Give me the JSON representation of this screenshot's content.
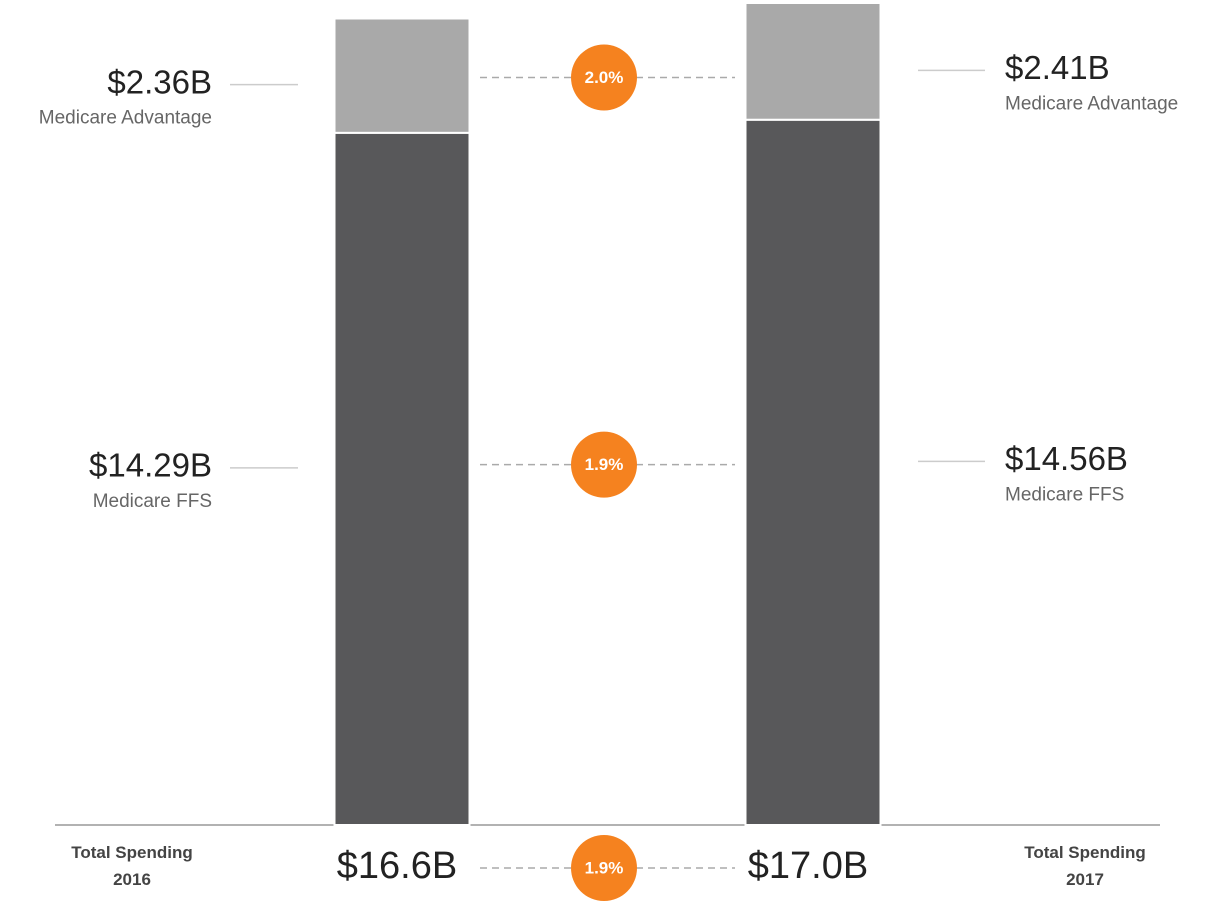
{
  "chart_data": {
    "type": "stacked-bar",
    "categories": [
      "Total Spending\n2016",
      "Total Spending\n2017"
    ],
    "series": [
      {
        "name": "Medicare FFS",
        "color": "#58585a",
        "values": [
          14.29,
          14.56
        ],
        "value_labels": [
          "$14.29B",
          "$14.56B"
        ],
        "change": 1.9,
        "change_label": "1.9%"
      },
      {
        "name": "Medicare Advantage",
        "color": "#a9a9a9",
        "values": [
          2.36,
          2.41
        ],
        "value_labels": [
          "$2.36B",
          "$2.41B"
        ],
        "change": 2.0,
        "change_label": "2.0%"
      }
    ],
    "totals": {
      "values": [
        16.6,
        17.0
      ],
      "value_labels": [
        "$16.6B",
        "$17.0B"
      ],
      "change": 1.9,
      "change_label": "1.9%"
    },
    "change_color": "#f5821f"
  }
}
